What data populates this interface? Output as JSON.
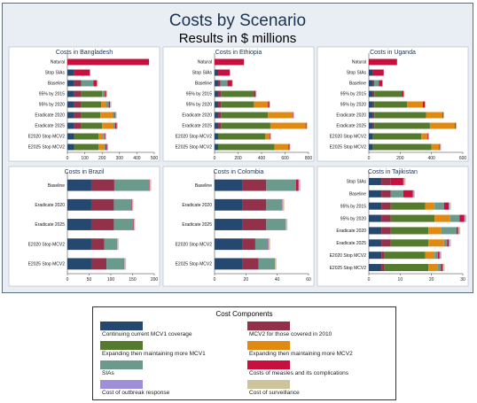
{
  "page": {
    "title": "Costs by Scenario",
    "subtitle": "Results in $ millions"
  },
  "component_colors": {
    "Continuing current MCV1 coverage": "#24486f",
    "MCV2 for those covered in 2010": "#93304a",
    "Expanding then maintaining more MCV1": "#547a2e",
    "Expanding then maintaining more MCV2": "#e08a12",
    "SIAs": "#6a9a8c",
    "Costs of measles and its complications": "#c8103e",
    "Cost of outbreak response": "#9f8ed8",
    "Cost of surveillance": "#cdc49a"
  },
  "legend": {
    "title": "Cost Components",
    "items": [
      "Continuing current MCV1 coverage",
      "MCV2 for those covered in 2010",
      "Expanding then maintaining more MCV1",
      "Expanding then maintaining more MCV2",
      "SIAs",
      "Costs of measles and its complications",
      "Cost of outbreak response",
      "Cost of surveillance"
    ]
  },
  "chart_data": [
    {
      "type": "bar",
      "orientation": "horizontal",
      "stacked": true,
      "title": "Costs in Bangladesh",
      "xlim": [
        0,
        500
      ],
      "xticks": [
        0,
        100,
        200,
        300,
        400,
        500
      ],
      "categories": [
        "Natural",
        "Stop SIAs",
        "Baseline",
        "95% by 2015",
        "95% by 2020",
        "Eradicate 2020",
        "Eradicate 2025",
        "E2020 Stop MCV2",
        "E2025 Stop MCV2"
      ],
      "series": [
        {
          "name": "Continuing current MCV1 coverage",
          "values": [
            0,
            40,
            40,
            40,
            40,
            40,
            40,
            40,
            40
          ]
        },
        {
          "name": "MCV2 for those covered in 2010",
          "values": [
            0,
            0,
            40,
            40,
            40,
            40,
            40,
            0,
            0
          ]
        },
        {
          "name": "Expanding then maintaining more MCV1",
          "values": [
            0,
            0,
            0,
            120,
            115,
            110,
            120,
            140,
            140
          ]
        },
        {
          "name": "Expanding then maintaining more MCV2",
          "values": [
            0,
            0,
            0,
            0,
            25,
            70,
            65,
            25,
            30
          ]
        },
        {
          "name": "SIAs",
          "values": [
            0,
            0,
            70,
            15,
            18,
            12,
            10,
            8,
            10
          ]
        },
        {
          "name": "Costs of measles and its complications",
          "values": [
            470,
            90,
            20,
            8,
            8,
            5,
            8,
            5,
            8
          ]
        },
        {
          "name": "Cost of outbreak response",
          "values": [
            0,
            0,
            2,
            2,
            2,
            2,
            2,
            2,
            2
          ]
        },
        {
          "name": "Cost of surveillance",
          "values": [
            0,
            0,
            4,
            5,
            5,
            5,
            5,
            5,
            5
          ]
        }
      ]
    },
    {
      "type": "bar",
      "orientation": "horizontal",
      "stacked": true,
      "title": "Costs in Ethiopia",
      "xlim": [
        0,
        800
      ],
      "xticks": [
        0,
        200,
        400,
        600,
        800
      ],
      "categories": [
        "Natural",
        "Stop SIAs",
        "Baseline",
        "95% by 2015",
        "95% by 2020",
        "Eradicate 2020",
        "Eradicate 2025",
        "E2020 Stop MCV2",
        "E2025 Stop MCV2"
      ],
      "series": [
        {
          "name": "Continuing current MCV1 coverage",
          "values": [
            0,
            30,
            30,
            30,
            30,
            30,
            30,
            30,
            30
          ]
        },
        {
          "name": "MCV2 for those covered in 2010",
          "values": [
            0,
            0,
            20,
            25,
            25,
            25,
            25,
            0,
            0
          ]
        },
        {
          "name": "Expanding then maintaining more MCV1",
          "values": [
            0,
            0,
            0,
            280,
            280,
            400,
            420,
            400,
            480
          ]
        },
        {
          "name": "Expanding then maintaining more MCV2",
          "values": [
            0,
            0,
            0,
            0,
            120,
            210,
            300,
            40,
            120
          ]
        },
        {
          "name": "SIAs",
          "values": [
            0,
            0,
            60,
            0,
            0,
            0,
            0,
            0,
            0
          ]
        },
        {
          "name": "Costs of measles and its complications",
          "values": [
            250,
            100,
            40,
            15,
            12,
            5,
            8,
            5,
            8
          ]
        },
        {
          "name": "Cost of outbreak response",
          "values": [
            0,
            0,
            2,
            2,
            2,
            2,
            2,
            2,
            2
          ]
        },
        {
          "name": "Cost of surveillance",
          "values": [
            0,
            0,
            5,
            5,
            5,
            5,
            5,
            5,
            5
          ]
        }
      ]
    },
    {
      "type": "bar",
      "orientation": "horizontal",
      "stacked": true,
      "title": "Costs in Uganda",
      "xlim": [
        0,
        600
      ],
      "xticks": [
        0,
        200,
        400,
        600
      ],
      "categories": [
        "Natural",
        "Stop SIAs",
        "Baseline",
        "95% by 2015",
        "95% by 2020",
        "Eradicate 2020",
        "Eradicate 2025",
        "E2020 Stop MCV2",
        "E2025 Stop MCV2"
      ],
      "series": [
        {
          "name": "Continuing current MCV1 coverage",
          "values": [
            0,
            25,
            25,
            25,
            25,
            25,
            25,
            25,
            25
          ]
        },
        {
          "name": "MCV2 for those covered in 2010",
          "values": [
            0,
            0,
            10,
            10,
            10,
            10,
            10,
            0,
            0
          ]
        },
        {
          "name": "Expanding then maintaining more MCV1",
          "values": [
            0,
            0,
            0,
            175,
            210,
            330,
            355,
            310,
            375
          ]
        },
        {
          "name": "Expanding then maintaining more MCV2",
          "values": [
            0,
            0,
            0,
            0,
            100,
            105,
            160,
            40,
            50
          ]
        },
        {
          "name": "SIAs",
          "values": [
            0,
            0,
            30,
            0,
            0,
            0,
            0,
            0,
            0
          ]
        },
        {
          "name": "Costs of measles and its complications",
          "values": [
            180,
            70,
            20,
            12,
            12,
            5,
            5,
            5,
            5
          ]
        },
        {
          "name": "Cost of outbreak response",
          "values": [
            0,
            0,
            2,
            2,
            2,
            2,
            2,
            2,
            2
          ]
        },
        {
          "name": "Cost of surveillance",
          "values": [
            0,
            0,
            4,
            4,
            4,
            4,
            4,
            4,
            4
          ]
        }
      ]
    },
    {
      "type": "bar",
      "orientation": "horizontal",
      "stacked": true,
      "title": "Costs in Brazil",
      "xlim": [
        0,
        200
      ],
      "xticks": [
        0,
        50,
        100,
        150,
        200
      ],
      "categories": [
        "Baseline",
        "Eradicate 2020",
        "Eradicate 2025",
        "E2020 Stop MCV2",
        "E2025 Stop MCV2"
      ],
      "series": [
        {
          "name": "Continuing current MCV1 coverage",
          "values": [
            55,
            55,
            55,
            55,
            55
          ]
        },
        {
          "name": "MCV2 for those covered in 2010",
          "values": [
            53,
            52,
            52,
            30,
            35
          ]
        },
        {
          "name": "Expanding then maintaining more MCV1",
          "values": [
            0,
            0,
            0,
            0,
            0
          ]
        },
        {
          "name": "Expanding then maintaining more MCV2",
          "values": [
            0,
            0,
            0,
            0,
            0
          ]
        },
        {
          "name": "SIAs",
          "values": [
            80,
            40,
            44,
            28,
            40
          ]
        },
        {
          "name": "Costs of measles and its complications",
          "values": [
            1,
            1,
            1,
            1,
            1
          ]
        },
        {
          "name": "Cost of outbreak response",
          "values": [
            1,
            1,
            1,
            1,
            1
          ]
        },
        {
          "name": "Cost of surveillance",
          "values": [
            3,
            3,
            3,
            3,
            3
          ]
        }
      ]
    },
    {
      "type": "bar",
      "orientation": "horizontal",
      "stacked": true,
      "title": "Costs in Colombia",
      "xlim": [
        0,
        60
      ],
      "xticks": [
        0,
        20,
        40,
        60
      ],
      "categories": [
        "Baseline",
        "Eradicate 2020",
        "Eradicate 2025",
        "E2020 Stop MCV2",
        "E2025 Stop MCV2"
      ],
      "series": [
        {
          "name": "Continuing current MCV1 coverage",
          "values": [
            18,
            18,
            18,
            18,
            18
          ]
        },
        {
          "name": "MCV2 for those covered in 2010",
          "values": [
            15,
            15,
            15,
            8,
            10
          ]
        },
        {
          "name": "Expanding then maintaining more MCV1",
          "values": [
            0,
            0,
            0,
            0,
            0
          ]
        },
        {
          "name": "Expanding then maintaining more MCV2",
          "values": [
            0,
            0,
            0,
            0,
            0
          ]
        },
        {
          "name": "SIAs",
          "values": [
            19,
            10,
            12,
            8,
            10
          ]
        },
        {
          "name": "Costs of measles and its complications",
          "values": [
            1.5,
            0.2,
            0.2,
            0.2,
            0.2
          ]
        },
        {
          "name": "Cost of outbreak response",
          "values": [
            0.3,
            0.3,
            0.3,
            0.3,
            0.3
          ]
        },
        {
          "name": "Cost of surveillance",
          "values": [
            1,
            1,
            1,
            1,
            1
          ]
        }
      ]
    },
    {
      "type": "bar",
      "orientation": "horizontal",
      "stacked": true,
      "title": "Costs in Tajikistan",
      "xlim": [
        0,
        30
      ],
      "xticks": [
        0,
        10,
        20,
        30
      ],
      "categories": [
        "Stop SIAs",
        "Baseline",
        "95% by 2015",
        "95% by 2020",
        "Eradicate 2020",
        "Eradicate 2025",
        "E2020 Stop MCV2",
        "E2025 Stop MCV2"
      ],
      "series": [
        {
          "name": "Continuing current MCV1 coverage",
          "values": [
            4,
            4,
            4,
            4,
            4,
            4,
            4,
            4
          ]
        },
        {
          "name": "MCV2 for those covered in 2010",
          "values": [
            3,
            3,
            3,
            3,
            3,
            3,
            1,
            1
          ]
        },
        {
          "name": "Expanding then maintaining more MCV1",
          "values": [
            0,
            0,
            11,
            14,
            12,
            12,
            13,
            14
          ]
        },
        {
          "name": "Expanding then maintaining more MCV2",
          "values": [
            0,
            0,
            3,
            5,
            4,
            5,
            3,
            3
          ]
        },
        {
          "name": "SIAs",
          "values": [
            0,
            4,
            3,
            3,
            5,
            1,
            1,
            1
          ]
        },
        {
          "name": "Costs of measles and its complications",
          "values": [
            4,
            3,
            1.5,
            1.5,
            0.5,
            0.5,
            0.5,
            0.5
          ]
        },
        {
          "name": "Cost of outbreak response",
          "values": [
            0.3,
            0.3,
            0.3,
            0.3,
            0.3,
            0.3,
            0.3,
            0.3
          ]
        },
        {
          "name": "Cost of surveillance",
          "values": [
            0.4,
            0.4,
            0.4,
            0.4,
            0.4,
            0.4,
            0.4,
            0.4
          ]
        }
      ]
    }
  ]
}
